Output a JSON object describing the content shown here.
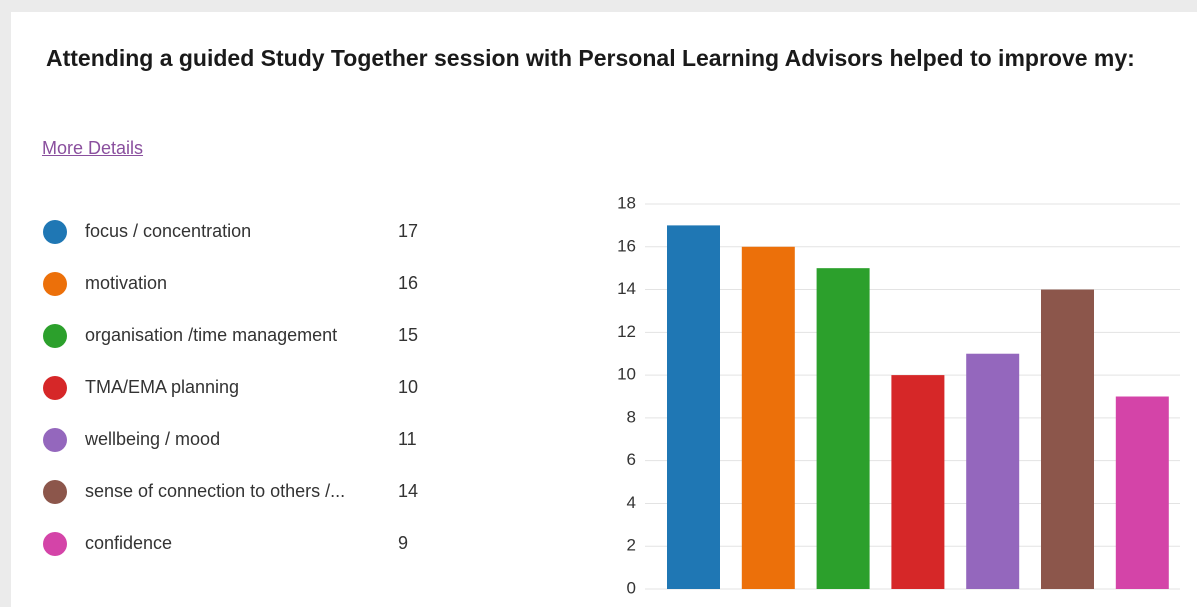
{
  "link": "More Details",
  "chart_data": {
    "type": "bar",
    "title": "Attending a guided Study Together session with Personal Learning Advisors helped to improve my:",
    "categories": [
      "focus / concentration",
      "motivation",
      "organisation /time management",
      "TMA/EMA planning",
      "wellbeing / mood",
      "sense of connection to others /...",
      "confidence"
    ],
    "values": [
      17,
      16,
      15,
      10,
      11,
      14,
      9
    ],
    "colors": [
      "#1f77b4",
      "#ec700a",
      "#2ca02c",
      "#d62728",
      "#9467bd",
      "#8c564b",
      "#d444a8"
    ],
    "ylim": [
      0,
      18
    ],
    "yticks": [
      0,
      2,
      4,
      6,
      8,
      10,
      12,
      14,
      16,
      18
    ],
    "grid": true
  }
}
